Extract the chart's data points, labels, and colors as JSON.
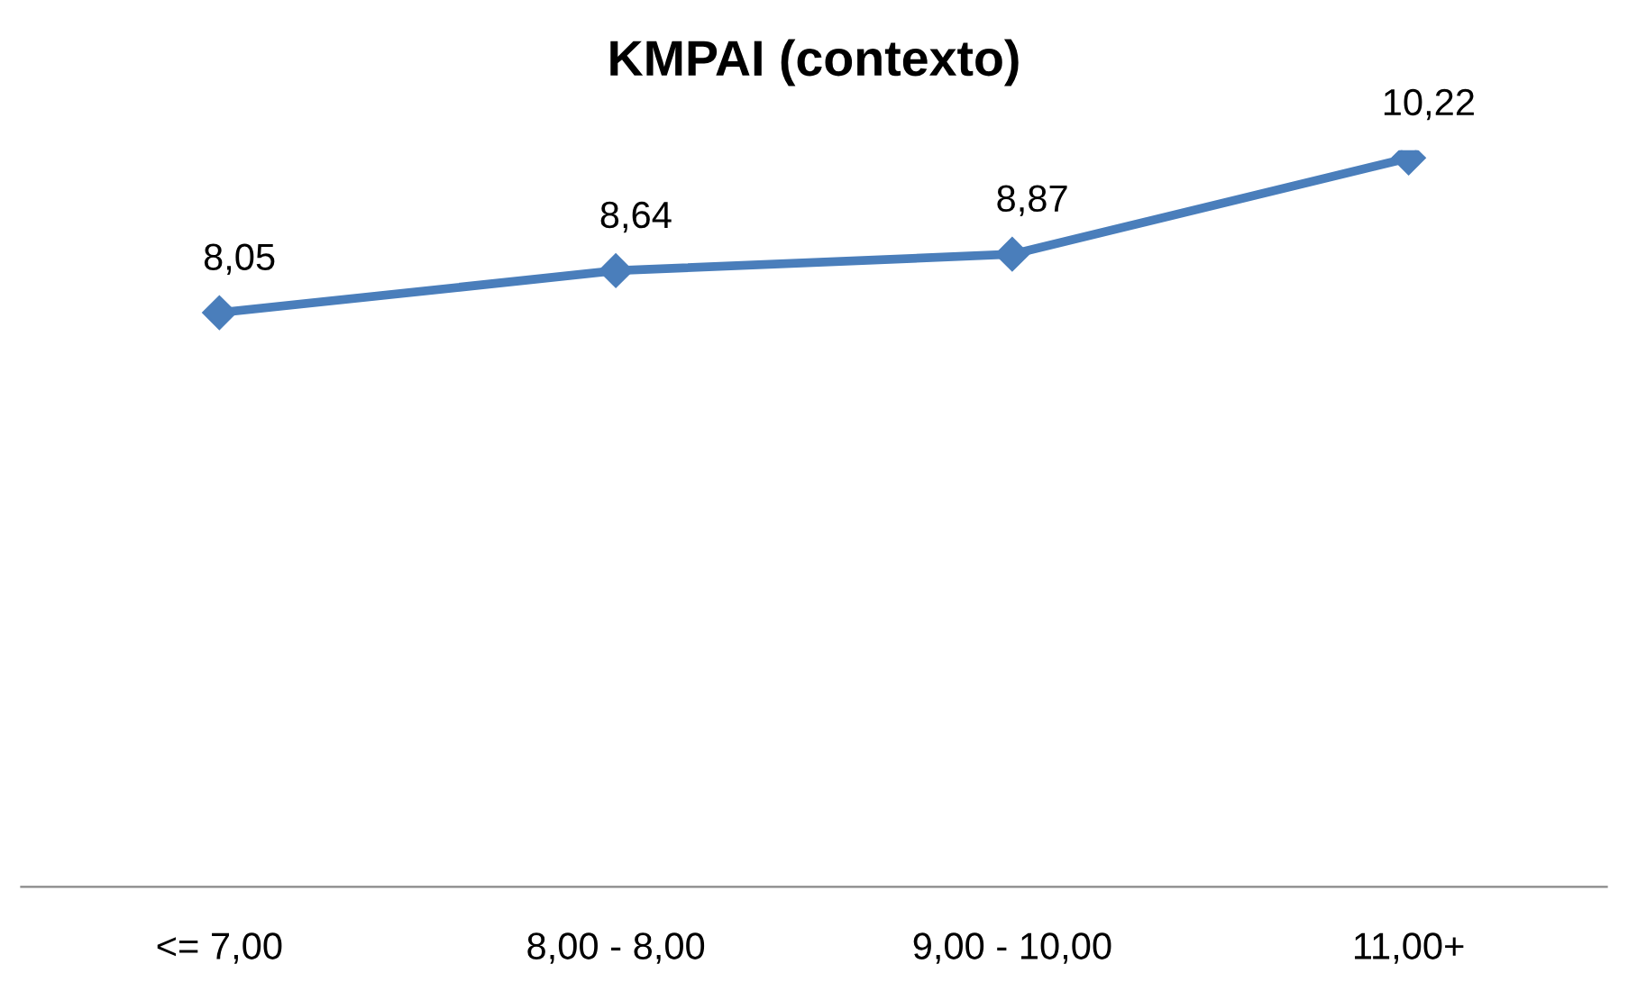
{
  "chart_data": {
    "type": "line",
    "title": "KMPAI (contexto)",
    "categories": [
      "<= 7,00",
      "8,00 - 8,00",
      "9,00 - 10,00",
      "11,00+"
    ],
    "series": [
      {
        "color": "#4a7ebb",
        "values": [
          8.05,
          8.64,
          8.87,
          10.22
        ],
        "value_labels": [
          "8,05",
          "8,64",
          "8,87",
          "10,22"
        ]
      }
    ],
    "tick_labels": "x",
    "grid": false,
    "marker": "diamond",
    "line_style": "solid"
  }
}
